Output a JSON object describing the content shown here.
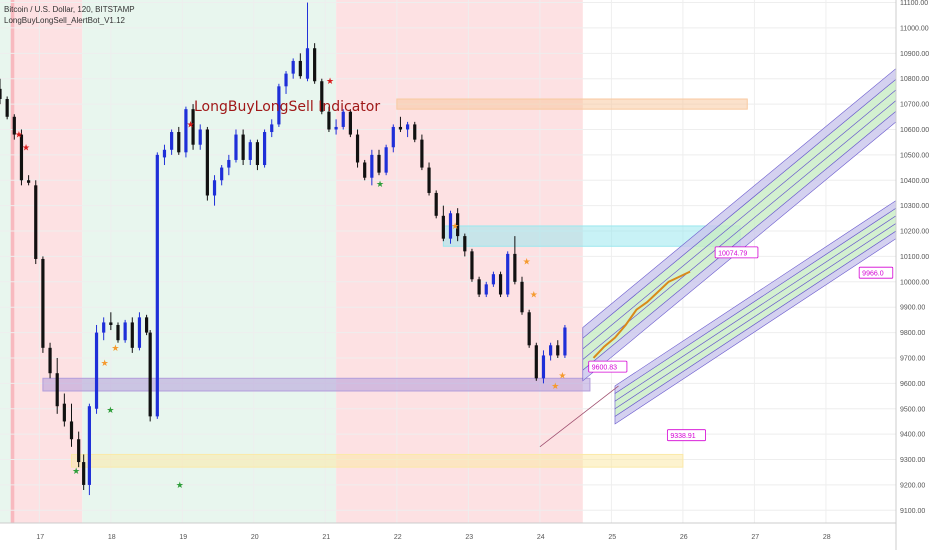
{
  "header": {
    "symbol_line": "Bitcoin / U.S. Dollar, 120, BITSTAMP",
    "indicator_line": "LongBuyLongSell_AlertBot_V1.12"
  },
  "colors": {
    "up_candle": "#1e2fd8",
    "down_candle": "#111111",
    "bg_green": "#e8f6ee",
    "bg_red": "#fde1e3",
    "bg_red_strong": "#f8b9bf",
    "grid": "#eeeeee",
    "zone_purple": "#b39ddb",
    "zone_orange": "#f8c9a0",
    "zone_yellow": "#fbe9a8",
    "zone_cyan": "#9be7ee",
    "channel_green": "#c8ecc4",
    "channel_purple": "#c9c5ec",
    "callout": "#d400d4"
  },
  "chart_data": {
    "type": "candlestick",
    "title": "LongBuyLongSell Indicator",
    "ylim": [
      9050,
      11110
    ],
    "xlim": [
      16.45,
      28.98
    ],
    "y_ticks": [
      "11100.00",
      "11000.00",
      "10900.00",
      "10800.00",
      "10700.00",
      "10600.00",
      "10500.00",
      "10400.00",
      "10300.00",
      "10200.00",
      "10100.00",
      "10000.00",
      "9900.00",
      "9800.00",
      "9700.00",
      "9600.00",
      "9500.00",
      "9400.00",
      "9300.00",
      "9200.00",
      "9100.00"
    ],
    "x_ticks": [
      "17",
      "18",
      "19",
      "20",
      "21",
      "22",
      "23",
      "24",
      "25",
      "26",
      "27",
      "28"
    ],
    "background_bands": [
      {
        "x0": 16.45,
        "x1": 16.6,
        "color": "green"
      },
      {
        "x0": 16.6,
        "x1": 17.6,
        "color": "red"
      },
      {
        "x0": 17.6,
        "x1": 21.15,
        "color": "green"
      },
      {
        "x0": 21.15,
        "x1": 24.6,
        "color": "red"
      }
    ],
    "zones": [
      {
        "color": "orange",
        "x0": 22.0,
        "x1": 26.9,
        "y0": 10680,
        "y1": 10720
      },
      {
        "color": "cyan",
        "x0": 22.65,
        "x1": 26.8,
        "y0": 10140,
        "y1": 10220
      },
      {
        "color": "purple",
        "x0": 17.05,
        "x1": 24.7,
        "y0": 9570,
        "y1": 9620
      },
      {
        "color": "yellow",
        "x0": 17.45,
        "x1": 26.0,
        "y0": 9270,
        "y1": 9320
      }
    ],
    "candles": [
      [
        16.45,
        10760,
        10800,
        10700,
        10720
      ],
      [
        16.55,
        10720,
        10730,
        10640,
        10650
      ],
      [
        16.65,
        10650,
        10660,
        10560,
        10580
      ],
      [
        16.75,
        10580,
        10600,
        10380,
        10400
      ],
      [
        16.85,
        10400,
        10420,
        10380,
        10390
      ],
      [
        16.95,
        10380,
        10400,
        10070,
        10090
      ],
      [
        17.05,
        10090,
        10100,
        9720,
        9740
      ],
      [
        17.15,
        9740,
        9760,
        9620,
        9640
      ],
      [
        17.25,
        9640,
        9700,
        9480,
        9510
      ],
      [
        17.35,
        9520,
        9560,
        9430,
        9450
      ],
      [
        17.45,
        9450,
        9520,
        9350,
        9380
      ],
      [
        17.55,
        9380,
        9410,
        9270,
        9290
      ],
      [
        17.62,
        9290,
        9320,
        9180,
        9200
      ],
      [
        17.7,
        9200,
        9520,
        9160,
        9510
      ],
      [
        17.8,
        9500,
        9830,
        9480,
        9800
      ],
      [
        17.9,
        9800,
        9860,
        9770,
        9840
      ],
      [
        18.0,
        9840,
        9880,
        9810,
        9830
      ],
      [
        18.1,
        9830,
        9840,
        9760,
        9770
      ],
      [
        18.2,
        9770,
        9850,
        9760,
        9840
      ],
      [
        18.3,
        9840,
        9860,
        9720,
        9740
      ],
      [
        18.4,
        9740,
        9880,
        9730,
        9860
      ],
      [
        18.5,
        9860,
        9870,
        9790,
        9800
      ],
      [
        18.55,
        9800,
        9810,
        9450,
        9470
      ],
      [
        18.65,
        9470,
        10510,
        9460,
        10500
      ],
      [
        18.75,
        10490,
        10540,
        10460,
        10520
      ],
      [
        18.85,
        10520,
        10600,
        10500,
        10590
      ],
      [
        18.95,
        10590,
        10610,
        10500,
        10510
      ],
      [
        19.05,
        10510,
        10690,
        10490,
        10680
      ],
      [
        19.15,
        10680,
        10700,
        10520,
        10540
      ],
      [
        19.25,
        10540,
        10620,
        10520,
        10600
      ],
      [
        19.35,
        10600,
        10610,
        10320,
        10340
      ],
      [
        19.45,
        10340,
        10420,
        10300,
        10400
      ],
      [
        19.55,
        10400,
        10460,
        10380,
        10450
      ],
      [
        19.65,
        10450,
        10500,
        10420,
        10480
      ],
      [
        19.75,
        10480,
        10600,
        10470,
        10580
      ],
      [
        19.85,
        10580,
        10600,
        10460,
        10480
      ],
      [
        19.95,
        10480,
        10560,
        10460,
        10550
      ],
      [
        20.05,
        10550,
        10560,
        10440,
        10460
      ],
      [
        20.15,
        10460,
        10600,
        10450,
        10590
      ],
      [
        20.25,
        10590,
        10640,
        10570,
        10620
      ],
      [
        20.35,
        10620,
        10780,
        10610,
        10770
      ],
      [
        20.45,
        10770,
        10830,
        10740,
        10820
      ],
      [
        20.55,
        10820,
        10880,
        10800,
        10870
      ],
      [
        20.65,
        10870,
        10900,
        10800,
        10810
      ],
      [
        20.75,
        10800,
        11100,
        10790,
        10920
      ],
      [
        20.85,
        10920,
        10940,
        10780,
        10790
      ],
      [
        20.95,
        10790,
        10800,
        10660,
        10670
      ],
      [
        21.05,
        10670,
        10690,
        10590,
        10600
      ],
      [
        21.15,
        10600,
        10640,
        10580,
        10610
      ],
      [
        21.25,
        10610,
        10680,
        10600,
        10670
      ],
      [
        21.35,
        10670,
        10680,
        10570,
        10580
      ],
      [
        21.45,
        10580,
        10600,
        10450,
        10470
      ],
      [
        21.55,
        10470,
        10480,
        10400,
        10410
      ],
      [
        21.65,
        10410,
        10520,
        10380,
        10500
      ],
      [
        21.75,
        10500,
        10520,
        10420,
        10430
      ],
      [
        21.85,
        10430,
        10540,
        10420,
        10530
      ],
      [
        21.95,
        10530,
        10620,
        10510,
        10610
      ],
      [
        22.05,
        10610,
        10650,
        10590,
        10600
      ],
      [
        22.15,
        10600,
        10630,
        10570,
        10620
      ],
      [
        22.25,
        10620,
        10630,
        10550,
        10560
      ],
      [
        22.35,
        10560,
        10580,
        10440,
        10450
      ],
      [
        22.45,
        10450,
        10470,
        10340,
        10350
      ],
      [
        22.55,
        10350,
        10360,
        10250,
        10260
      ],
      [
        22.65,
        10260,
        10300,
        10160,
        10170
      ],
      [
        22.75,
        10170,
        10280,
        10150,
        10270
      ],
      [
        22.85,
        10270,
        10290,
        10160,
        10180
      ],
      [
        22.95,
        10180,
        10190,
        10100,
        10120
      ],
      [
        23.05,
        10120,
        10130,
        10000,
        10010
      ],
      [
        23.15,
        10010,
        10020,
        9940,
        9950
      ],
      [
        23.25,
        9950,
        10000,
        9940,
        9990
      ],
      [
        23.35,
        9990,
        10040,
        9980,
        10030
      ],
      [
        23.45,
        10030,
        10040,
        9940,
        9950
      ],
      [
        23.55,
        9950,
        10120,
        9940,
        10110
      ],
      [
        23.65,
        10110,
        10180,
        9990,
        10000
      ],
      [
        23.75,
        10000,
        10020,
        9870,
        9880
      ],
      [
        23.85,
        9880,
        9890,
        9740,
        9750
      ],
      [
        23.95,
        9750,
        9760,
        9610,
        9620
      ],
      [
        24.05,
        9620,
        9730,
        9600,
        9710
      ],
      [
        24.15,
        9710,
        9760,
        9690,
        9750
      ],
      [
        24.25,
        9750,
        9770,
        9700,
        9710
      ],
      [
        24.35,
        9710,
        9830,
        9700,
        9820
      ]
    ],
    "up_arrow_markers": [
      [
        17.5,
        9255
      ],
      [
        17.98,
        9495
      ],
      [
        18.95,
        9200
      ],
      [
        21.75,
        10385
      ]
    ],
    "down_arrow_markers": [
      [
        16.7,
        10580
      ],
      [
        16.8,
        10530
      ],
      [
        19.1,
        10620
      ],
      [
        21.05,
        10790
      ]
    ],
    "orange_markers": [
      [
        17.9,
        9680
      ],
      [
        18.05,
        9740
      ],
      [
        22.8,
        10220
      ],
      [
        23.8,
        10080
      ],
      [
        23.9,
        9950
      ],
      [
        24.2,
        9590
      ],
      [
        24.3,
        9630
      ]
    ],
    "channels": [
      {
        "base": [
          24.6,
          9610,
          9820
        ],
        "end": [
          28.98,
          10840,
          10180
        ]
      },
      {
        "base": [
          25.05,
          9440,
          9590
        ],
        "end": [
          28.98,
          10320,
          9700
        ]
      }
    ],
    "forecast_path": [
      [
        24.75,
        9700
      ],
      [
        24.9,
        9745
      ],
      [
        25.05,
        9780
      ],
      [
        25.2,
        9830
      ],
      [
        25.35,
        9890
      ],
      [
        25.5,
        9920
      ],
      [
        25.65,
        9960
      ],
      [
        25.8,
        10000
      ],
      [
        25.95,
        10020
      ],
      [
        26.1,
        10040
      ]
    ],
    "callouts": [
      {
        "label": "9600.83",
        "x": 24.95,
        "y": 9660
      },
      {
        "label": "10074.79",
        "x": 26.75,
        "y": 10110
      },
      {
        "label": "9966.0",
        "x": 28.7,
        "y": 10030
      },
      {
        "label": "9338.91",
        "x": 26.05,
        "y": 9390
      }
    ]
  }
}
